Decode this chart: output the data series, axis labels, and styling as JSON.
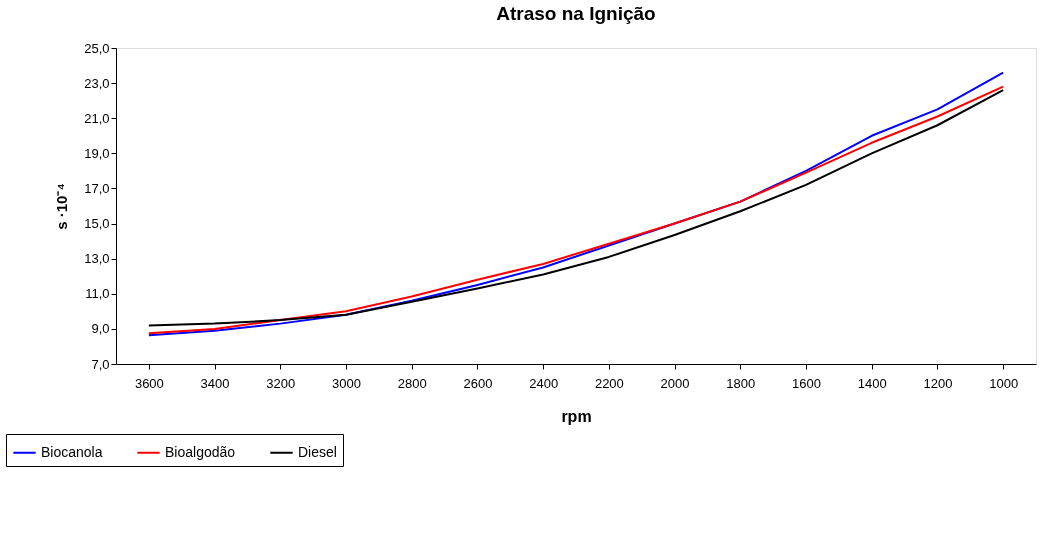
{
  "chart_data": {
    "type": "line",
    "title": "Atraso na Ignição",
    "xlabel": "rpm",
    "ylabel": "s ·10⁻⁴",
    "x": [
      3600,
      3400,
      3200,
      3000,
      2800,
      2600,
      2400,
      2200,
      2000,
      1800,
      1600,
      1400,
      1200,
      1000
    ],
    "series": [
      {
        "name": "Biocanola",
        "color": "#0000ff",
        "values": [
          8.64,
          8.9,
          9.3,
          9.8,
          10.6,
          11.5,
          12.5,
          13.75,
          15.0,
          16.25,
          18.0,
          20.0,
          21.5,
          23.6
        ]
      },
      {
        "name": "Bioalgodão",
        "color": "#ff0000",
        "values": [
          8.75,
          9.0,
          9.5,
          10.0,
          10.85,
          11.8,
          12.7,
          13.85,
          15.0,
          16.25,
          17.9,
          19.6,
          21.1,
          22.8
        ]
      },
      {
        "name": "Diesel",
        "color": "#000000",
        "values": [
          9.2,
          9.3,
          9.5,
          9.8,
          10.55,
          11.3,
          12.1,
          13.1,
          14.35,
          15.7,
          17.2,
          19.0,
          20.6,
          22.6
        ]
      }
    ],
    "xlim": [
      3700,
      900
    ],
    "xticks": [
      3600,
      3400,
      3200,
      3000,
      2800,
      2600,
      2400,
      2200,
      2000,
      1800,
      1600,
      1400,
      1200,
      1000
    ],
    "ylim": [
      7,
      25
    ],
    "yticks": [
      {
        "value": 7,
        "label": "7,0"
      },
      {
        "value": 9,
        "label": "9,0"
      },
      {
        "value": 11,
        "label": "11,0"
      },
      {
        "value": 13,
        "label": "13,0"
      },
      {
        "value": 15,
        "label": "15,0"
      },
      {
        "value": 17,
        "label": "17,0"
      },
      {
        "value": 19,
        "label": "19,0"
      },
      {
        "value": 21,
        "label": "21,0"
      },
      {
        "value": 23,
        "label": "23,0"
      },
      {
        "value": 25,
        "label": "25,0"
      }
    ],
    "grid": false,
    "legend": "bottom left",
    "marker": "none",
    "line_style": "solid"
  }
}
